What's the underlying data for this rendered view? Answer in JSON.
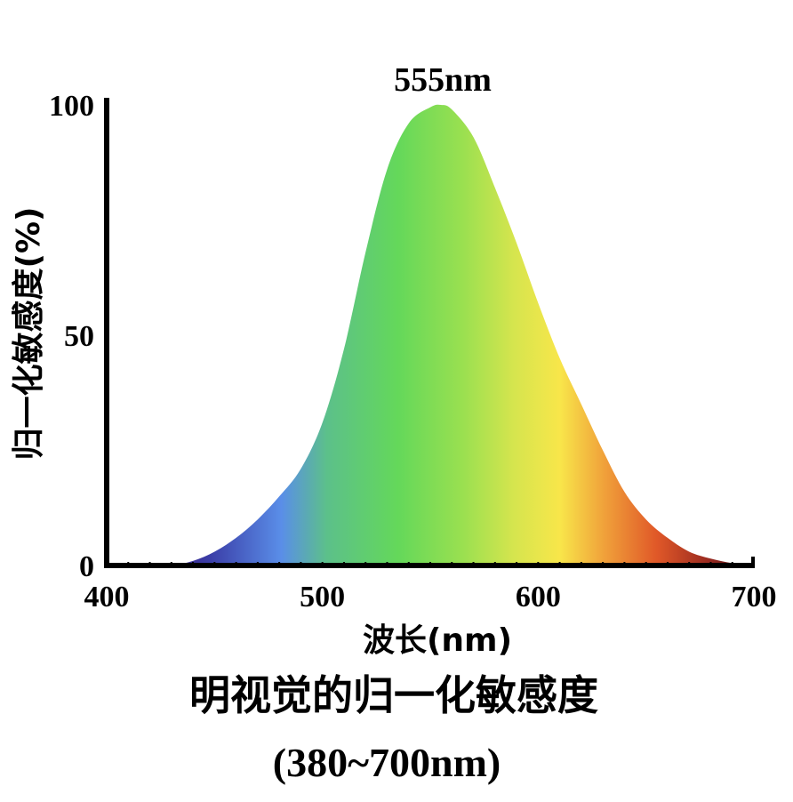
{
  "chart_data": {
    "type": "area",
    "xlabel": "波长(nm)",
    "ylabel": "归一化敏感度(%)",
    "xlim": [
      400,
      700
    ],
    "ylim": [
      0,
      100
    ],
    "x_ticks": [
      "400",
      "500",
      "600",
      "700"
    ],
    "y_ticks": [
      "0",
      "50",
      "100"
    ],
    "grid": false,
    "fill": "visible-spectrum-gradient",
    "peak_annotation": "555nm",
    "x": [
      400,
      420,
      430,
      440,
      450,
      460,
      470,
      480,
      490,
      500,
      510,
      520,
      530,
      540,
      550,
      555,
      560,
      570,
      580,
      590,
      600,
      610,
      620,
      630,
      640,
      650,
      660,
      670,
      680,
      690,
      700
    ],
    "y": [
      0,
      0,
      0,
      1,
      3,
      6,
      10,
      15,
      21,
      31,
      47,
      68,
      86,
      96,
      99.5,
      100,
      99,
      93,
      82,
      70,
      57,
      45,
      35,
      25,
      16,
      10,
      6,
      3,
      1.5,
      0.5,
      0
    ]
  },
  "caption": {
    "title": "明视觉的归一化敏感度",
    "range": "(380~700nm)"
  }
}
